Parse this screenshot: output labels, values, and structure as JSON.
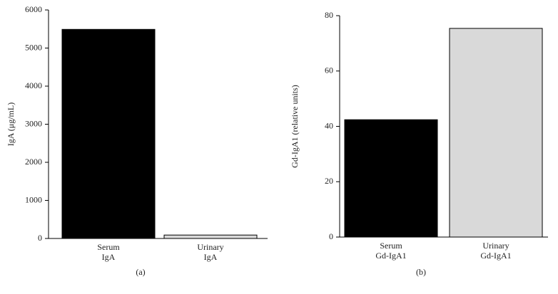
{
  "chart_data": [
    {
      "type": "bar",
      "panel_label": "(a)",
      "y_label": "IgA (μg/mL)",
      "categories": [
        [
          "Serum",
          "IgA"
        ],
        [
          "Urinary",
          "IgA"
        ]
      ],
      "values": [
        5490,
        90
      ],
      "colors": [
        "#000000",
        "#d9d9d9"
      ],
      "ylim": [
        0,
        6000
      ],
      "yticks": [
        0,
        1000,
        2000,
        3000,
        4000,
        5000,
        6000
      ]
    },
    {
      "type": "bar",
      "panel_label": "(b)",
      "y_label": "Gd-IgA1 (relative units)",
      "categories": [
        [
          "Serum",
          "Gd-IgA1"
        ],
        [
          "Urinary",
          "Gd-IgA1"
        ]
      ],
      "values": [
        42.4,
        75.4
      ],
      "colors": [
        "#000000",
        "#d9d9d9"
      ],
      "ylim": [
        0,
        80
      ],
      "yticks": [
        0,
        20,
        40,
        60,
        80
      ]
    }
  ]
}
